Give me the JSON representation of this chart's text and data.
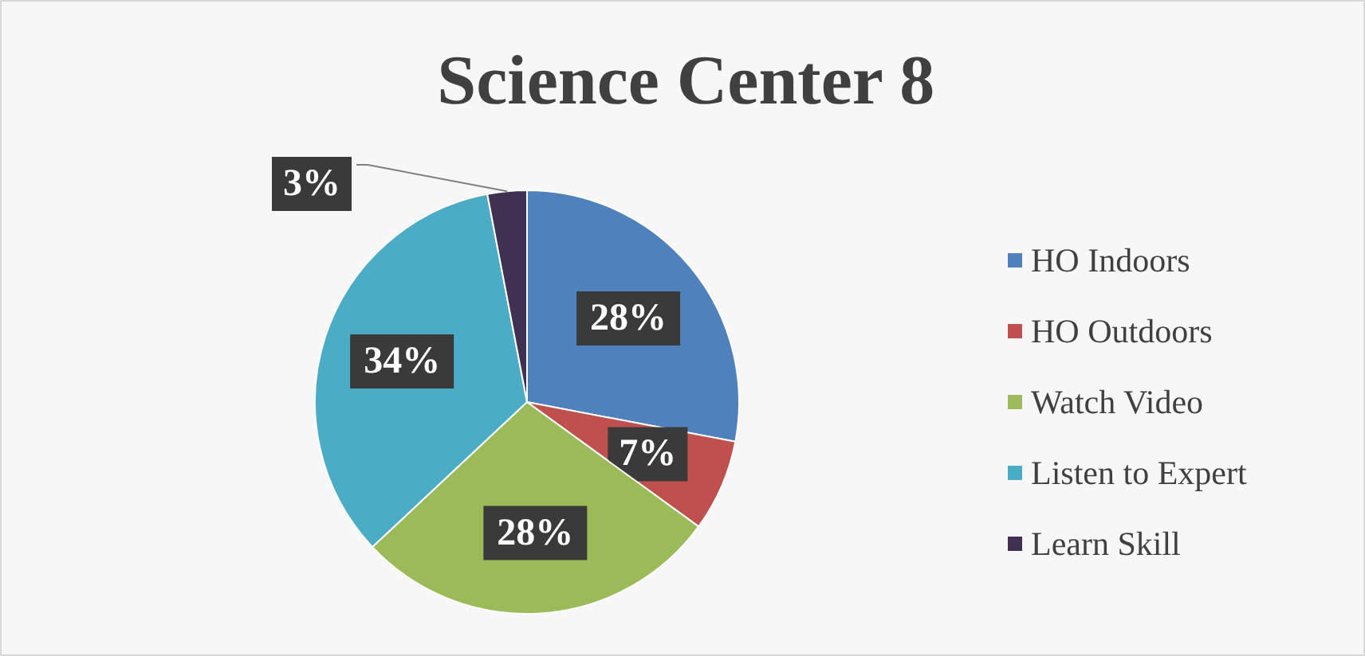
{
  "chart_data": {
    "type": "pie",
    "title": "Science Center 8",
    "categories": [
      "HO Indoors",
      "HO Outdoors",
      "Watch Video",
      "Listen to Expert",
      "Learn Skill"
    ],
    "values": [
      28,
      7,
      28,
      34,
      3
    ],
    "colors": [
      "#4f81bd",
      "#c0504d",
      "#9bbb59",
      "#4bacc6",
      "#403152"
    ],
    "value_labels": [
      "28%",
      "7%",
      "28%",
      "34%",
      "3%"
    ],
    "legend": "right"
  }
}
